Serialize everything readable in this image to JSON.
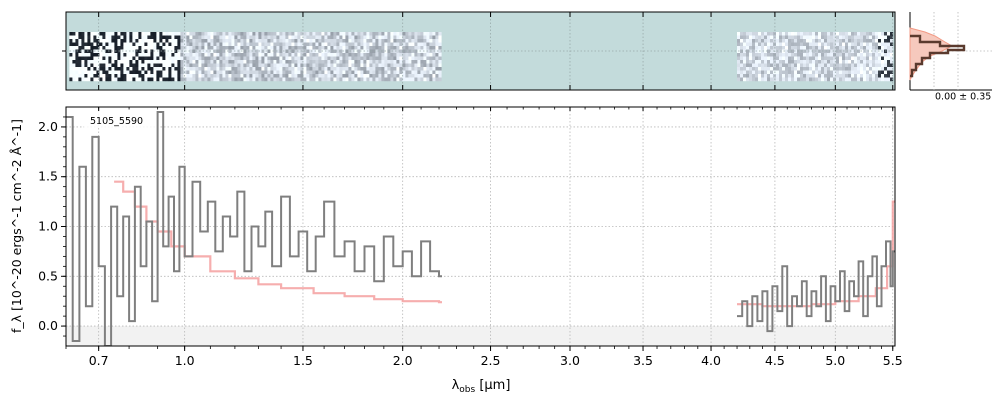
{
  "chart_data": {
    "type": "line",
    "object_label": "5105_5590",
    "xlabel_main": "λ",
    "xlabel_sub": "obs",
    "xlabel_unit": " [μm]",
    "ylabel": "f_λ [10^-20 ergs^-1 cm^-2 Å^-1]",
    "ylim": [
      -0.2,
      2.2
    ],
    "x_ticks": [
      0.7,
      1.0,
      1.5,
      2.0,
      2.5,
      3.0,
      3.5,
      4.0,
      4.5,
      5.0,
      5.5
    ],
    "x_tick_labels": [
      "0.7",
      "1.0",
      "1.5",
      "2.0",
      "2.5",
      "3.0",
      "3.5",
      "4.0",
      "4.5",
      "5.0",
      "5.5"
    ],
    "y_ticks": [
      0.0,
      0.5,
      1.0,
      1.5,
      2.0
    ],
    "y_tick_labels": [
      "0.0",
      "0.5",
      "1.0",
      "1.5",
      "2.0"
    ],
    "x_scale": "sqrt",
    "grid": true,
    "profile_label": "0.00 ± 0.35",
    "colors": {
      "data": "#7f7f7f",
      "model": "#f5a0a0",
      "image_bg": "#c3dbdb",
      "profile_main": "#5a3a2e",
      "profile_fill": "#f6c9bd",
      "grid": "#b8b8b8"
    },
    "series": [
      {
        "role": "data",
        "segments": [
          {
            "x": [
              0.6,
              0.62,
              0.64,
              0.66,
              0.68,
              0.7,
              0.72,
              0.74,
              0.76,
              0.78,
              0.8,
              0.82,
              0.84,
              0.86,
              0.88,
              0.9,
              0.92,
              0.94,
              0.96,
              0.98,
              1.0,
              1.03,
              1.06,
              1.09,
              1.12,
              1.15,
              1.18,
              1.21,
              1.24,
              1.27,
              1.3,
              1.33,
              1.36,
              1.4,
              1.44,
              1.48,
              1.52,
              1.56,
              1.6,
              1.65,
              1.7,
              1.75,
              1.8,
              1.85,
              1.9,
              1.95,
              2.0,
              2.05,
              2.1,
              2.15,
              2.2
            ],
            "y": [
              2.1,
              -0.15,
              1.6,
              0.2,
              1.9,
              0.6,
              -0.2,
              1.2,
              0.3,
              1.1,
              0.05,
              1.4,
              0.6,
              1.05,
              0.25,
              2.15,
              0.8,
              1.3,
              0.55,
              1.6,
              0.7,
              1.45,
              0.95,
              1.25,
              0.75,
              1.1,
              0.9,
              1.35,
              0.55,
              1.0,
              0.8,
              1.15,
              0.6,
              1.3,
              0.7,
              0.95,
              0.55,
              0.9,
              1.25,
              0.7,
              0.85,
              0.55,
              0.8,
              0.45,
              0.9,
              0.6,
              0.75,
              0.5,
              0.85,
              0.55,
              0.5
            ]
          },
          {
            "x": [
              4.2,
              4.24,
              4.28,
              4.32,
              4.36,
              4.4,
              4.44,
              4.48,
              4.52,
              4.56,
              4.6,
              4.64,
              4.68,
              4.72,
              4.76,
              4.8,
              4.84,
              4.88,
              4.92,
              4.96,
              5.0,
              5.04,
              5.08,
              5.12,
              5.16,
              5.2,
              5.24,
              5.28,
              5.32,
              5.36,
              5.4,
              5.44,
              5.48,
              5.5
            ],
            "y": [
              0.1,
              0.25,
              0.0,
              0.3,
              0.05,
              0.35,
              -0.05,
              0.4,
              0.15,
              0.6,
              0.0,
              0.3,
              0.2,
              0.45,
              0.1,
              0.35,
              0.2,
              0.5,
              0.05,
              0.4,
              0.25,
              0.55,
              0.15,
              0.45,
              0.3,
              0.65,
              0.1,
              0.5,
              0.7,
              0.2,
              0.6,
              0.85,
              0.4,
              0.75
            ]
          }
        ]
      },
      {
        "role": "model",
        "segments": [
          {
            "x": [
              0.75,
              0.78,
              0.82,
              0.86,
              0.9,
              0.95,
              1.0,
              1.1,
              1.2,
              1.3,
              1.4,
              1.55,
              1.7,
              1.85,
              2.0,
              2.2
            ],
            "y": [
              1.45,
              1.35,
              1.2,
              1.05,
              0.95,
              0.8,
              0.7,
              0.55,
              0.48,
              0.42,
              0.38,
              0.33,
              0.3,
              0.27,
              0.25,
              0.24
            ]
          },
          {
            "x": [
              4.2,
              4.4,
              4.6,
              4.8,
              5.0,
              5.2,
              5.35,
              5.45,
              5.5
            ],
            "y": [
              0.22,
              0.2,
              0.2,
              0.22,
              0.25,
              0.3,
              0.38,
              0.6,
              1.25
            ]
          }
        ]
      }
    ]
  }
}
